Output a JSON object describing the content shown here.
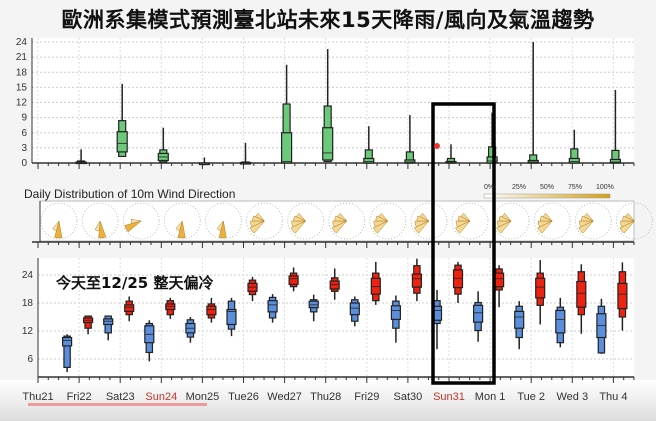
{
  "title": "歐洲系集模式預測臺北站未來15天降雨/風向及氣溫趨勢",
  "annotation": "今天至12/25 整天偏冷",
  "wind": {
    "title": "Daily Distribution of 10m Wind Direction",
    "scale_labels": [
      "0%",
      "25%",
      "50%",
      "75%",
      "100%"
    ],
    "scale_color": "#d4a017"
  },
  "colors": {
    "rain": "#6cc97a",
    "tmin": "#5b8fdc",
    "tmax": "#ee2211",
    "highlight": "#000000",
    "weekend_label": "#c0392b"
  },
  "days": [
    "Thu21",
    "Fri22",
    "Sat23",
    "Sun24",
    "Mon25",
    "Tue26",
    "Wed27",
    "Thu28",
    "Fri29",
    "Sat30",
    "Sun31",
    "Mon 1",
    "Tue 2",
    "Wed 3",
    "Thu 4"
  ],
  "weekend_days": [
    "Sun24",
    "Sun31"
  ],
  "highlight_days": [
    "Sun31",
    "Mon 1"
  ],
  "chart_data": [
    {
      "type": "boxplot",
      "title": "",
      "ylim": [
        0,
        24
      ],
      "yticks": [
        0,
        3,
        6,
        9,
        12,
        15,
        18,
        21,
        24
      ],
      "grid": true,
      "categories": [
        "Fri22",
        "Sat23",
        "Sun24",
        "Mon25",
        "Tue26",
        "Wed27",
        "Thu28",
        "Fri29",
        "Sat30",
        "Sun31",
        "Mon 1",
        "Tue 2",
        "Wed 3",
        "Thu 4"
      ],
      "series": [
        {
          "values": [
            {
              "wl": 0,
              "ol": 0,
              "il": 0,
              "med": 0.1,
              "ih": 0.2,
              "oh": 0.4,
              "wh": 2.7
            },
            {
              "wl": 1.3,
              "ol": 1.3,
              "il": 2.2,
              "med": 3.9,
              "ih": 6.2,
              "oh": 8.4,
              "wh": 15.7
            },
            {
              "wl": 0.2,
              "ol": 0.2,
              "il": 0.5,
              "med": 1.2,
              "ih": 1.9,
              "oh": 2.6,
              "wh": 7
            },
            {
              "wl": 0,
              "ol": 0,
              "il": 0,
              "med": 0,
              "ih": 0,
              "oh": 0,
              "wh": 1.1
            },
            {
              "wl": 0,
              "ol": 0,
              "il": 0,
              "med": 0,
              "ih": 0.1,
              "oh": 0.2,
              "wh": 4
            },
            {
              "wl": 0,
              "ol": 0,
              "il": 0,
              "med": 0.3,
              "ih": 6,
              "oh": 11.7,
              "wh": 19.5
            },
            {
              "wl": 0.3,
              "ol": 0.3,
              "il": 0.6,
              "med": 2,
              "ih": 7,
              "oh": 11.3,
              "wh": 22.6
            },
            {
              "wl": 0,
              "ol": 0,
              "il": 0,
              "med": 0.3,
              "ih": 0.9,
              "oh": 2.6,
              "wh": 7.3
            },
            {
              "wl": 0,
              "ol": 0,
              "il": 0,
              "med": 0.2,
              "ih": 0.6,
              "oh": 2.2,
              "wh": 9.5
            },
            {
              "wl": 0,
              "ol": 0,
              "il": 0,
              "med": 0.1,
              "ih": 0.3,
              "oh": 0.9,
              "wh": 3.7
            },
            {
              "wl": 0,
              "ol": 0,
              "il": 0,
              "med": 0.4,
              "ih": 1.2,
              "oh": 3.2,
              "wh": 10
            },
            {
              "wl": 0,
              "ol": 0,
              "il": 0,
              "med": 0.2,
              "ih": 0.5,
              "oh": 1.6,
              "wh": 24
            },
            {
              "wl": 0,
              "ol": 0,
              "il": 0,
              "med": 0.3,
              "ih": 0.9,
              "oh": 2.8,
              "wh": 6.6
            },
            {
              "wl": 0,
              "ol": 0,
              "il": 0,
              "med": 0.2,
              "ih": 0.7,
              "oh": 2.5,
              "wh": 14.5
            }
          ]
        }
      ]
    },
    {
      "type": "boxplot",
      "title": "",
      "ylim": [
        2,
        28
      ],
      "yticks": [
        6,
        12,
        18,
        24
      ],
      "grid": true,
      "categories": [
        "Fri22",
        "Sat23",
        "Sun24",
        "Mon25",
        "Tue26",
        "Wed27",
        "Thu28",
        "Fri29",
        "Sat30",
        "Sun31",
        "Mon 1",
        "Tue 2",
        "Wed 3",
        "Thu 4"
      ],
      "series": [
        {
          "key": "tmin",
          "values": [
            {
              "wl": 3.2,
              "ol": 4.2,
              "il": 8.8,
              "med": 10,
              "ih": 10.6,
              "oh": 10.9,
              "wh": 11.3
            },
            {
              "wl": 10,
              "ol": 11.6,
              "il": 13.4,
              "med": 14.1,
              "ih": 14.6,
              "oh": 15.2,
              "wh": 15.2
            },
            {
              "wl": 5.5,
              "ol": 7.4,
              "il": 9.5,
              "med": 11.3,
              "ih": 13.1,
              "oh": 13.6,
              "wh": 14.3
            },
            {
              "wl": 9.5,
              "ol": 10.7,
              "il": 11.6,
              "med": 12.6,
              "ih": 13.6,
              "oh": 14.4,
              "wh": 15
            },
            {
              "wl": 10.9,
              "ol": 12.4,
              "il": 13.4,
              "med": 16.2,
              "ih": 16.6,
              "oh": 18.4,
              "wh": 19.1
            },
            {
              "wl": 13.8,
              "ol": 14.8,
              "il": 16.1,
              "med": 17.6,
              "ih": 18.5,
              "oh": 19.2,
              "wh": 19.9
            },
            {
              "wl": 14.1,
              "ol": 16.1,
              "il": 17,
              "med": 17.6,
              "ih": 18.4,
              "oh": 18.7,
              "wh": 19.8
            },
            {
              "wl": 13,
              "ol": 14.1,
              "il": 15.5,
              "med": 16.9,
              "ih": 18,
              "oh": 18.7,
              "wh": 19.4
            },
            {
              "wl": 9.5,
              "ol": 12.6,
              "il": 14.5,
              "med": 16.4,
              "ih": 17.4,
              "oh": 18.4,
              "wh": 19.6
            },
            {
              "wl": 8.1,
              "ol": 13.6,
              "il": 14.3,
              "med": 16.4,
              "ih": 17.3,
              "oh": 18.5,
              "wh": 20.8
            },
            {
              "wl": 9.7,
              "ol": 12.1,
              "il": 13.9,
              "med": 15.9,
              "ih": 17.5,
              "oh": 18.1,
              "wh": 20.5
            },
            {
              "wl": 8.1,
              "ol": 10.6,
              "il": 12.6,
              "med": 15,
              "ih": 16.2,
              "oh": 17.3,
              "wh": 18.4
            },
            {
              "wl": 8.5,
              "ol": 9.5,
              "il": 11.6,
              "med": 14.5,
              "ih": 16.4,
              "oh": 17.1,
              "wh": 19.1
            },
            {
              "wl": 7.1,
              "ol": 7.3,
              "il": 10.6,
              "med": 13.2,
              "ih": 15.7,
              "oh": 17.3,
              "wh": 18.9
            }
          ]
        },
        {
          "key": "tmax",
          "values": [
            {
              "wl": 11.3,
              "ol": 12.6,
              "il": 13.8,
              "med": 14.3,
              "ih": 14.8,
              "oh": 15.2,
              "wh": 15.3
            },
            {
              "wl": 14.1,
              "ol": 15.5,
              "il": 16.2,
              "med": 17.1,
              "ih": 17.6,
              "oh": 18.4,
              "wh": 19.4
            },
            {
              "wl": 14.6,
              "ol": 15.5,
              "il": 16.6,
              "med": 17.3,
              "ih": 17.8,
              "oh": 18.5,
              "wh": 19.1
            },
            {
              "wl": 13.8,
              "ol": 14.8,
              "il": 15.5,
              "med": 16.6,
              "ih": 17.3,
              "oh": 17.8,
              "wh": 19.1
            },
            {
              "wl": 18.4,
              "ol": 19.8,
              "il": 20.5,
              "med": 21.4,
              "ih": 22.2,
              "oh": 22.9,
              "wh": 23.6
            },
            {
              "wl": 20.5,
              "ol": 21.5,
              "il": 22,
              "med": 23.2,
              "ih": 23.8,
              "oh": 24.4,
              "wh": 25.6
            },
            {
              "wl": 18.7,
              "ol": 20.5,
              "il": 21,
              "med": 22,
              "ih": 22.7,
              "oh": 23.4,
              "wh": 25.4
            },
            {
              "wl": 17.6,
              "ol": 18.5,
              "il": 19.9,
              "med": 21.5,
              "ih": 23.3,
              "oh": 24.4,
              "wh": 26.8
            },
            {
              "wl": 18.4,
              "ol": 20.1,
              "il": 21.4,
              "med": 23.2,
              "ih": 24.2,
              "oh": 26,
              "wh": 27.5
            },
            {
              "wl": 18,
              "ol": 19.9,
              "il": 21.3,
              "med": 23.3,
              "ih": 25.1,
              "oh": 26.1,
              "wh": 26.8
            },
            {
              "wl": 17.1,
              "ol": 20.8,
              "il": 21.5,
              "med": 23.2,
              "ih": 24.4,
              "oh": 25.3,
              "wh": 26.1
            },
            {
              "wl": 13.4,
              "ol": 17.5,
              "il": 19.1,
              "med": 21.4,
              "ih": 23.3,
              "oh": 24.4,
              "wh": 27.2
            },
            {
              "wl": 11.4,
              "ol": 15.5,
              "il": 17.1,
              "med": 20.1,
              "ih": 22.6,
              "oh": 24.7,
              "wh": 26.3
            },
            {
              "wl": 12.1,
              "ol": 15,
              "il": 16.8,
              "med": 19.9,
              "ih": 22.2,
              "oh": 24.7,
              "wh": 26.7
            }
          ]
        }
      ]
    }
  ]
}
